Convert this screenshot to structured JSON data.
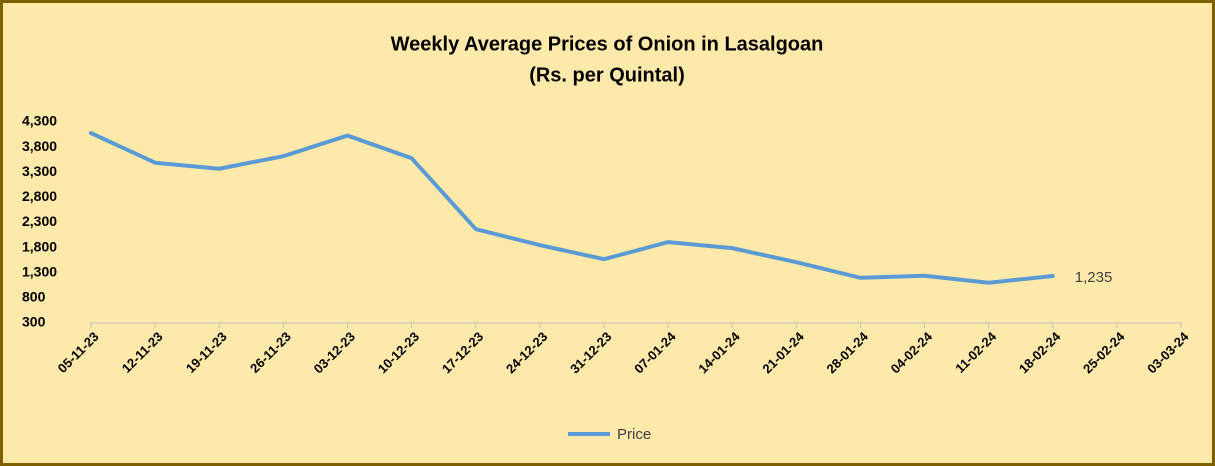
{
  "chart_data": {
    "type": "line",
    "title": "Weekly Average Prices of Onion in Lasalgoan",
    "subtitle": "(Rs. per Quintal)",
    "categories": [
      "05-11-23",
      "12-11-23",
      "19-11-23",
      "26-11-23",
      "03-12-23",
      "10-12-23",
      "17-12-23",
      "24-12-23",
      "31-12-23",
      "07-01-24",
      "14-01-24",
      "21-01-24",
      "28-01-24",
      "04-02-24",
      "11-02-24",
      "18-02-24",
      "25-02-24",
      "03-03-24"
    ],
    "series": [
      {
        "name": "Price",
        "color": "#5b9bd5",
        "values": [
          4080,
          3490,
          3370,
          3620,
          4030,
          3580,
          2170,
          1850,
          1570,
          1910,
          1790,
          1510,
          1200,
          1240,
          1100,
          1235,
          null,
          null
        ],
        "value_labels": [
          null,
          null,
          null,
          null,
          null,
          null,
          null,
          null,
          null,
          null,
          null,
          null,
          null,
          null,
          null,
          "1,235",
          null,
          null
        ]
      }
    ],
    "ylim": [
      300,
      4300
    ],
    "yticks": [
      {
        "value": 300,
        "label": "300"
      },
      {
        "value": 800,
        "label": "800"
      },
      {
        "value": 1300,
        "label": "1,300"
      },
      {
        "value": 1800,
        "label": "1,800"
      },
      {
        "value": 2300,
        "label": "2,300"
      },
      {
        "value": 2800,
        "label": "2,800"
      },
      {
        "value": 3300,
        "label": "3,300"
      },
      {
        "value": 3800,
        "label": "3,800"
      },
      {
        "value": 4300,
        "label": "4,300"
      }
    ],
    "grid": false,
    "legend": "bottom"
  }
}
